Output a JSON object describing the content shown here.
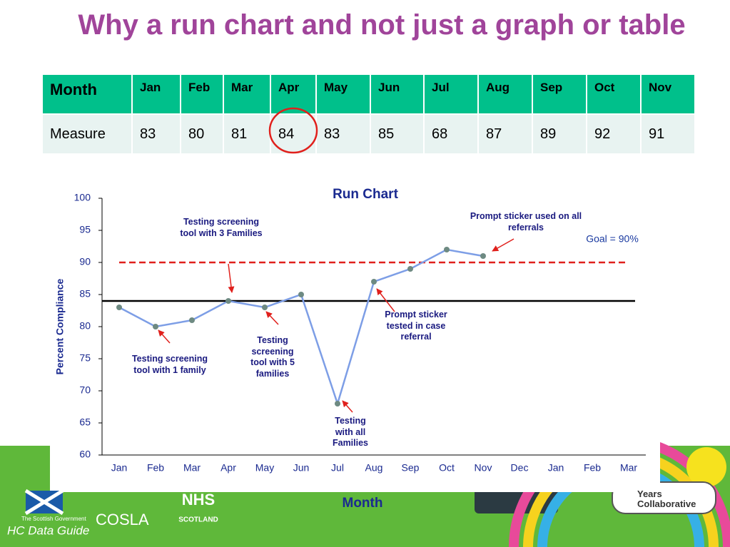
{
  "title": "Why a run chart and not just a graph or table",
  "table": {
    "header": [
      "Month",
      "Jan",
      "Feb",
      "Mar",
      "Apr",
      "May",
      "Jun",
      "Jul",
      "Aug",
      "Sep",
      "Oct",
      "Nov"
    ],
    "rows": [
      [
        "Measure",
        83,
        80,
        81,
        84,
        83,
        85,
        68,
        87,
        89,
        92,
        91
      ]
    ]
  },
  "chart_data": {
    "type": "line",
    "title": "Run Chart",
    "x_label": "Month",
    "y_label": "Percent Compliance",
    "categories": [
      "Jan",
      "Feb",
      "Mar",
      "Apr",
      "May",
      "Jun",
      "Jul",
      "Aug",
      "Sep",
      "Oct",
      "Nov",
      "Dec",
      "Jan",
      "Feb",
      "Mar"
    ],
    "values": [
      83,
      80,
      81,
      84,
      83,
      85,
      68,
      87,
      89,
      92,
      91,
      null,
      null,
      null,
      null
    ],
    "color": "#7d9ee6",
    "marker_color": "#6e8a82",
    "ylim": [
      60,
      100
    ],
    "yticks": [
      60,
      65,
      70,
      75,
      80,
      85,
      90,
      95,
      100
    ],
    "reference_lines": [
      {
        "value": 90,
        "label": "Goal = 90%",
        "color": "#e0201c",
        "style": "dashed"
      },
      {
        "value": 84,
        "color": "#000000",
        "style": "solid"
      }
    ],
    "annotations": [
      "Testing screening tool with 3 Families",
      "Prompt sticker used on all referrals",
      "Testing screening tool with 1 family",
      "Testing screening tool with 5 families",
      "Prompt sticker tested in case referral",
      "Testing with all Families"
    ]
  },
  "footer": {
    "caption": "HC Data Guide",
    "logos": [
      "The Scottish Government",
      "COSLA",
      "NHS",
      "SCOTLAND",
      "Years Collaborative"
    ]
  }
}
